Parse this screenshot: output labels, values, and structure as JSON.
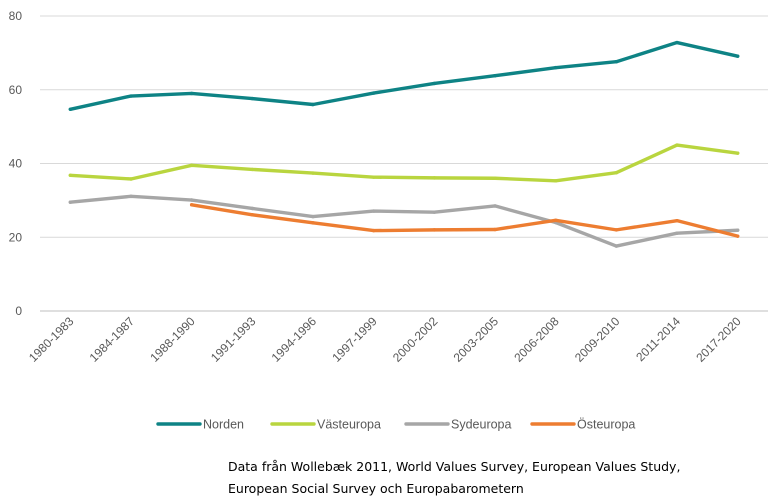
{
  "chart_data": {
    "type": "line",
    "title": "",
    "xlabel": "",
    "ylabel": "",
    "ylim": [
      0,
      80
    ],
    "yticks": [
      0,
      20,
      40,
      60,
      80
    ],
    "grid": true,
    "legend_position": "bottom",
    "categories": [
      "1980-1983",
      "1984-1987",
      "1988-1990",
      "1991-1993",
      "1994-1996",
      "1997-1999",
      "2000-2002",
      "2003-2005",
      "2006-2008",
      "2009-2010",
      "2011-2014",
      "2017-2020"
    ],
    "series": [
      {
        "name": "Norden",
        "color": "#0e8385",
        "values": [
          54.7,
          58.3,
          59.0,
          57.6,
          56.0,
          59.1,
          61.7,
          63.8,
          66.0,
          67.6,
          72.8,
          69.1
        ]
      },
      {
        "name": "Västeuropa",
        "color": "#b9d53f",
        "values": [
          36.8,
          35.8,
          39.5,
          38.4,
          37.4,
          36.3,
          36.1,
          36.0,
          35.3,
          37.5,
          45.0,
          42.8
        ]
      },
      {
        "name": "Sydeuropa",
        "color": "#a6a6a6",
        "values": [
          29.5,
          31.1,
          30.1,
          27.8,
          25.6,
          27.1,
          26.8,
          28.5,
          24.0,
          17.6,
          21.1,
          21.9
        ]
      },
      {
        "name": "Östeuropa",
        "color": "#ed7d31",
        "values": [
          null,
          null,
          28.8,
          26.1,
          23.9,
          21.8,
          22.0,
          22.1,
          24.6,
          22.0,
          24.5,
          20.3
        ]
      }
    ]
  },
  "source_note": {
    "line1": "Data från Wollebæk 2011, World Values Survey, European Values Study,",
    "line2": "European Social Survey och Europabarometern"
  }
}
